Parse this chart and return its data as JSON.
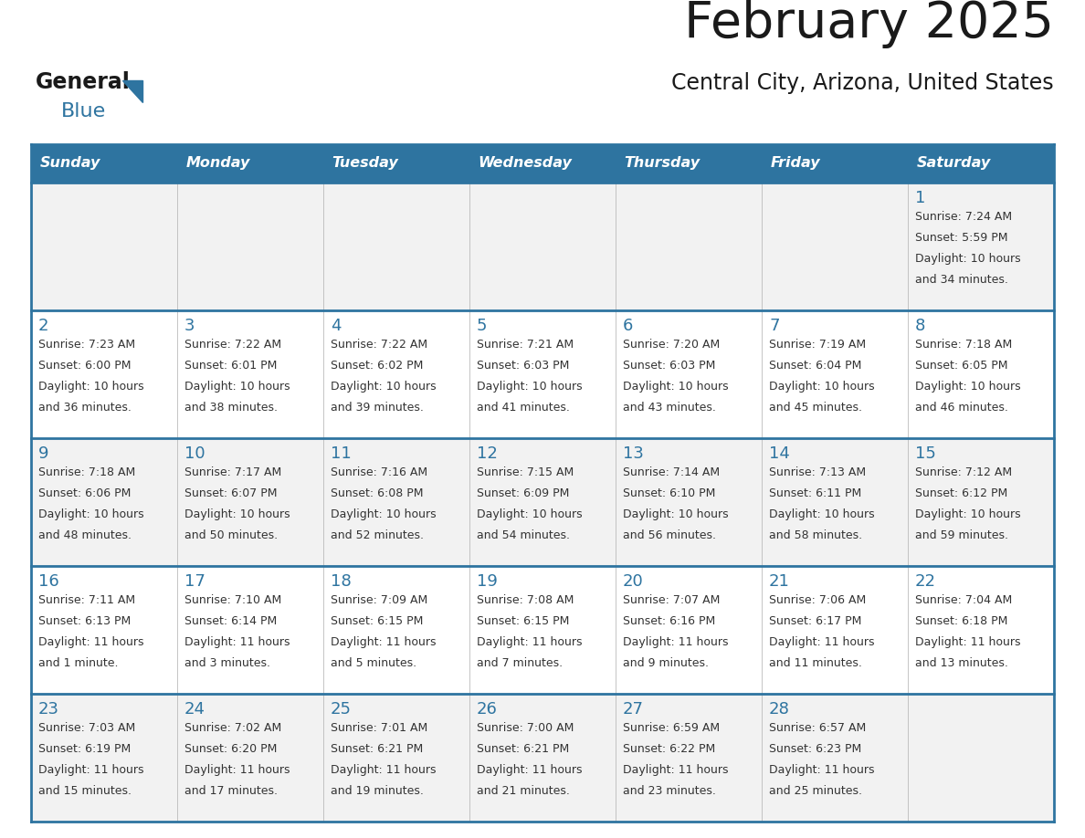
{
  "title": "February 2025",
  "subtitle": "Central City, Arizona, United States",
  "days_of_week": [
    "Sunday",
    "Monday",
    "Tuesday",
    "Wednesday",
    "Thursday",
    "Friday",
    "Saturday"
  ],
  "header_bg": "#2E74A0",
  "header_text": "#FFFFFF",
  "cell_bg_odd": "#F2F2F2",
  "cell_bg_even": "#FFFFFF",
  "border_color": "#2E74A0",
  "text_color": "#333333",
  "day_num_color": "#2E74A0",
  "calendar_data": [
    [
      null,
      null,
      null,
      null,
      null,
      null,
      1
    ],
    [
      2,
      3,
      4,
      5,
      6,
      7,
      8
    ],
    [
      9,
      10,
      11,
      12,
      13,
      14,
      15
    ],
    [
      16,
      17,
      18,
      19,
      20,
      21,
      22
    ],
    [
      23,
      24,
      25,
      26,
      27,
      28,
      null
    ]
  ],
  "sun_data": {
    "1": [
      "Sunrise: 7:24 AM",
      "Sunset: 5:59 PM",
      "Daylight: 10 hours",
      "and 34 minutes."
    ],
    "2": [
      "Sunrise: 7:23 AM",
      "Sunset: 6:00 PM",
      "Daylight: 10 hours",
      "and 36 minutes."
    ],
    "3": [
      "Sunrise: 7:22 AM",
      "Sunset: 6:01 PM",
      "Daylight: 10 hours",
      "and 38 minutes."
    ],
    "4": [
      "Sunrise: 7:22 AM",
      "Sunset: 6:02 PM",
      "Daylight: 10 hours",
      "and 39 minutes."
    ],
    "5": [
      "Sunrise: 7:21 AM",
      "Sunset: 6:03 PM",
      "Daylight: 10 hours",
      "and 41 minutes."
    ],
    "6": [
      "Sunrise: 7:20 AM",
      "Sunset: 6:03 PM",
      "Daylight: 10 hours",
      "and 43 minutes."
    ],
    "7": [
      "Sunrise: 7:19 AM",
      "Sunset: 6:04 PM",
      "Daylight: 10 hours",
      "and 45 minutes."
    ],
    "8": [
      "Sunrise: 7:18 AM",
      "Sunset: 6:05 PM",
      "Daylight: 10 hours",
      "and 46 minutes."
    ],
    "9": [
      "Sunrise: 7:18 AM",
      "Sunset: 6:06 PM",
      "Daylight: 10 hours",
      "and 48 minutes."
    ],
    "10": [
      "Sunrise: 7:17 AM",
      "Sunset: 6:07 PM",
      "Daylight: 10 hours",
      "and 50 minutes."
    ],
    "11": [
      "Sunrise: 7:16 AM",
      "Sunset: 6:08 PM",
      "Daylight: 10 hours",
      "and 52 minutes."
    ],
    "12": [
      "Sunrise: 7:15 AM",
      "Sunset: 6:09 PM",
      "Daylight: 10 hours",
      "and 54 minutes."
    ],
    "13": [
      "Sunrise: 7:14 AM",
      "Sunset: 6:10 PM",
      "Daylight: 10 hours",
      "and 56 minutes."
    ],
    "14": [
      "Sunrise: 7:13 AM",
      "Sunset: 6:11 PM",
      "Daylight: 10 hours",
      "and 58 minutes."
    ],
    "15": [
      "Sunrise: 7:12 AM",
      "Sunset: 6:12 PM",
      "Daylight: 10 hours",
      "and 59 minutes."
    ],
    "16": [
      "Sunrise: 7:11 AM",
      "Sunset: 6:13 PM",
      "Daylight: 11 hours",
      "and 1 minute."
    ],
    "17": [
      "Sunrise: 7:10 AM",
      "Sunset: 6:14 PM",
      "Daylight: 11 hours",
      "and 3 minutes."
    ],
    "18": [
      "Sunrise: 7:09 AM",
      "Sunset: 6:15 PM",
      "Daylight: 11 hours",
      "and 5 minutes."
    ],
    "19": [
      "Sunrise: 7:08 AM",
      "Sunset: 6:15 PM",
      "Daylight: 11 hours",
      "and 7 minutes."
    ],
    "20": [
      "Sunrise: 7:07 AM",
      "Sunset: 6:16 PM",
      "Daylight: 11 hours",
      "and 9 minutes."
    ],
    "21": [
      "Sunrise: 7:06 AM",
      "Sunset: 6:17 PM",
      "Daylight: 11 hours",
      "and 11 minutes."
    ],
    "22": [
      "Sunrise: 7:04 AM",
      "Sunset: 6:18 PM",
      "Daylight: 11 hours",
      "and 13 minutes."
    ],
    "23": [
      "Sunrise: 7:03 AM",
      "Sunset: 6:19 PM",
      "Daylight: 11 hours",
      "and 15 minutes."
    ],
    "24": [
      "Sunrise: 7:02 AM",
      "Sunset: 6:20 PM",
      "Daylight: 11 hours",
      "and 17 minutes."
    ],
    "25": [
      "Sunrise: 7:01 AM",
      "Sunset: 6:21 PM",
      "Daylight: 11 hours",
      "and 19 minutes."
    ],
    "26": [
      "Sunrise: 7:00 AM",
      "Sunset: 6:21 PM",
      "Daylight: 11 hours",
      "and 21 minutes."
    ],
    "27": [
      "Sunrise: 6:59 AM",
      "Sunset: 6:22 PM",
      "Daylight: 11 hours",
      "and 23 minutes."
    ],
    "28": [
      "Sunrise: 6:57 AM",
      "Sunset: 6:23 PM",
      "Daylight: 11 hours",
      "and 25 minutes."
    ]
  },
  "fig_width": 11.88,
  "fig_height": 9.18,
  "dpi": 100
}
